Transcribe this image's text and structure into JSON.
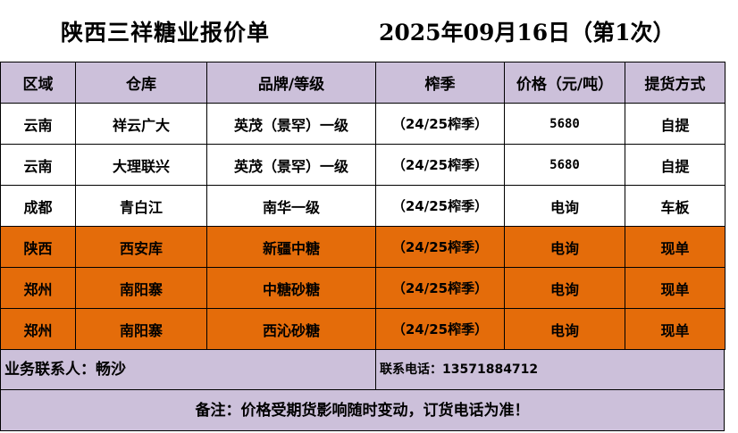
{
  "title": {
    "company": "陕西三祥糖业报价单",
    "date_batch": "2025年09月16日（第1次）"
  },
  "headers": [
    "区域",
    "仓库",
    "品牌/等级",
    "榨季",
    "价格（元/吨）",
    "提货方式"
  ],
  "rows": [
    {
      "style": "white",
      "cells": [
        "云南",
        "祥云广大",
        "英茂（景罕）一级",
        "（24/25榨季）",
        "5680",
        "自提"
      ]
    },
    {
      "style": "white",
      "cells": [
        "云南",
        "大理联兴",
        "英茂（景罕）一级",
        "（24/25榨季）",
        "5680",
        "自提"
      ]
    },
    {
      "style": "white",
      "cells": [
        "成都",
        "青白江",
        "南华一级",
        "（24/25榨季）",
        "电询",
        "车板"
      ]
    },
    {
      "style": "orange",
      "cells": [
        "陕西",
        "西安库",
        "新疆中糖",
        "（24/25榨季）",
        "电询",
        "现单"
      ]
    },
    {
      "style": "orange",
      "cells": [
        "郑州",
        "南阳寨",
        "中糖砂糖",
        "（24/25榨季）",
        "电询",
        "现单"
      ]
    },
    {
      "style": "orange",
      "cells": [
        "郑州",
        "南阳寨",
        "西沁砂糖",
        "（24/25榨季）",
        "电询",
        "现单"
      ]
    }
  ],
  "contact": {
    "person": "业务联系人：畅沙",
    "phone": "联系电话：13571884712"
  },
  "note": "备注：价格受期货影响随时变动，订货电话为准！",
  "colors": {
    "header_bg": "#ccc0da",
    "highlight_row": "#e46c0a",
    "plain_row": "#ffffff"
  }
}
